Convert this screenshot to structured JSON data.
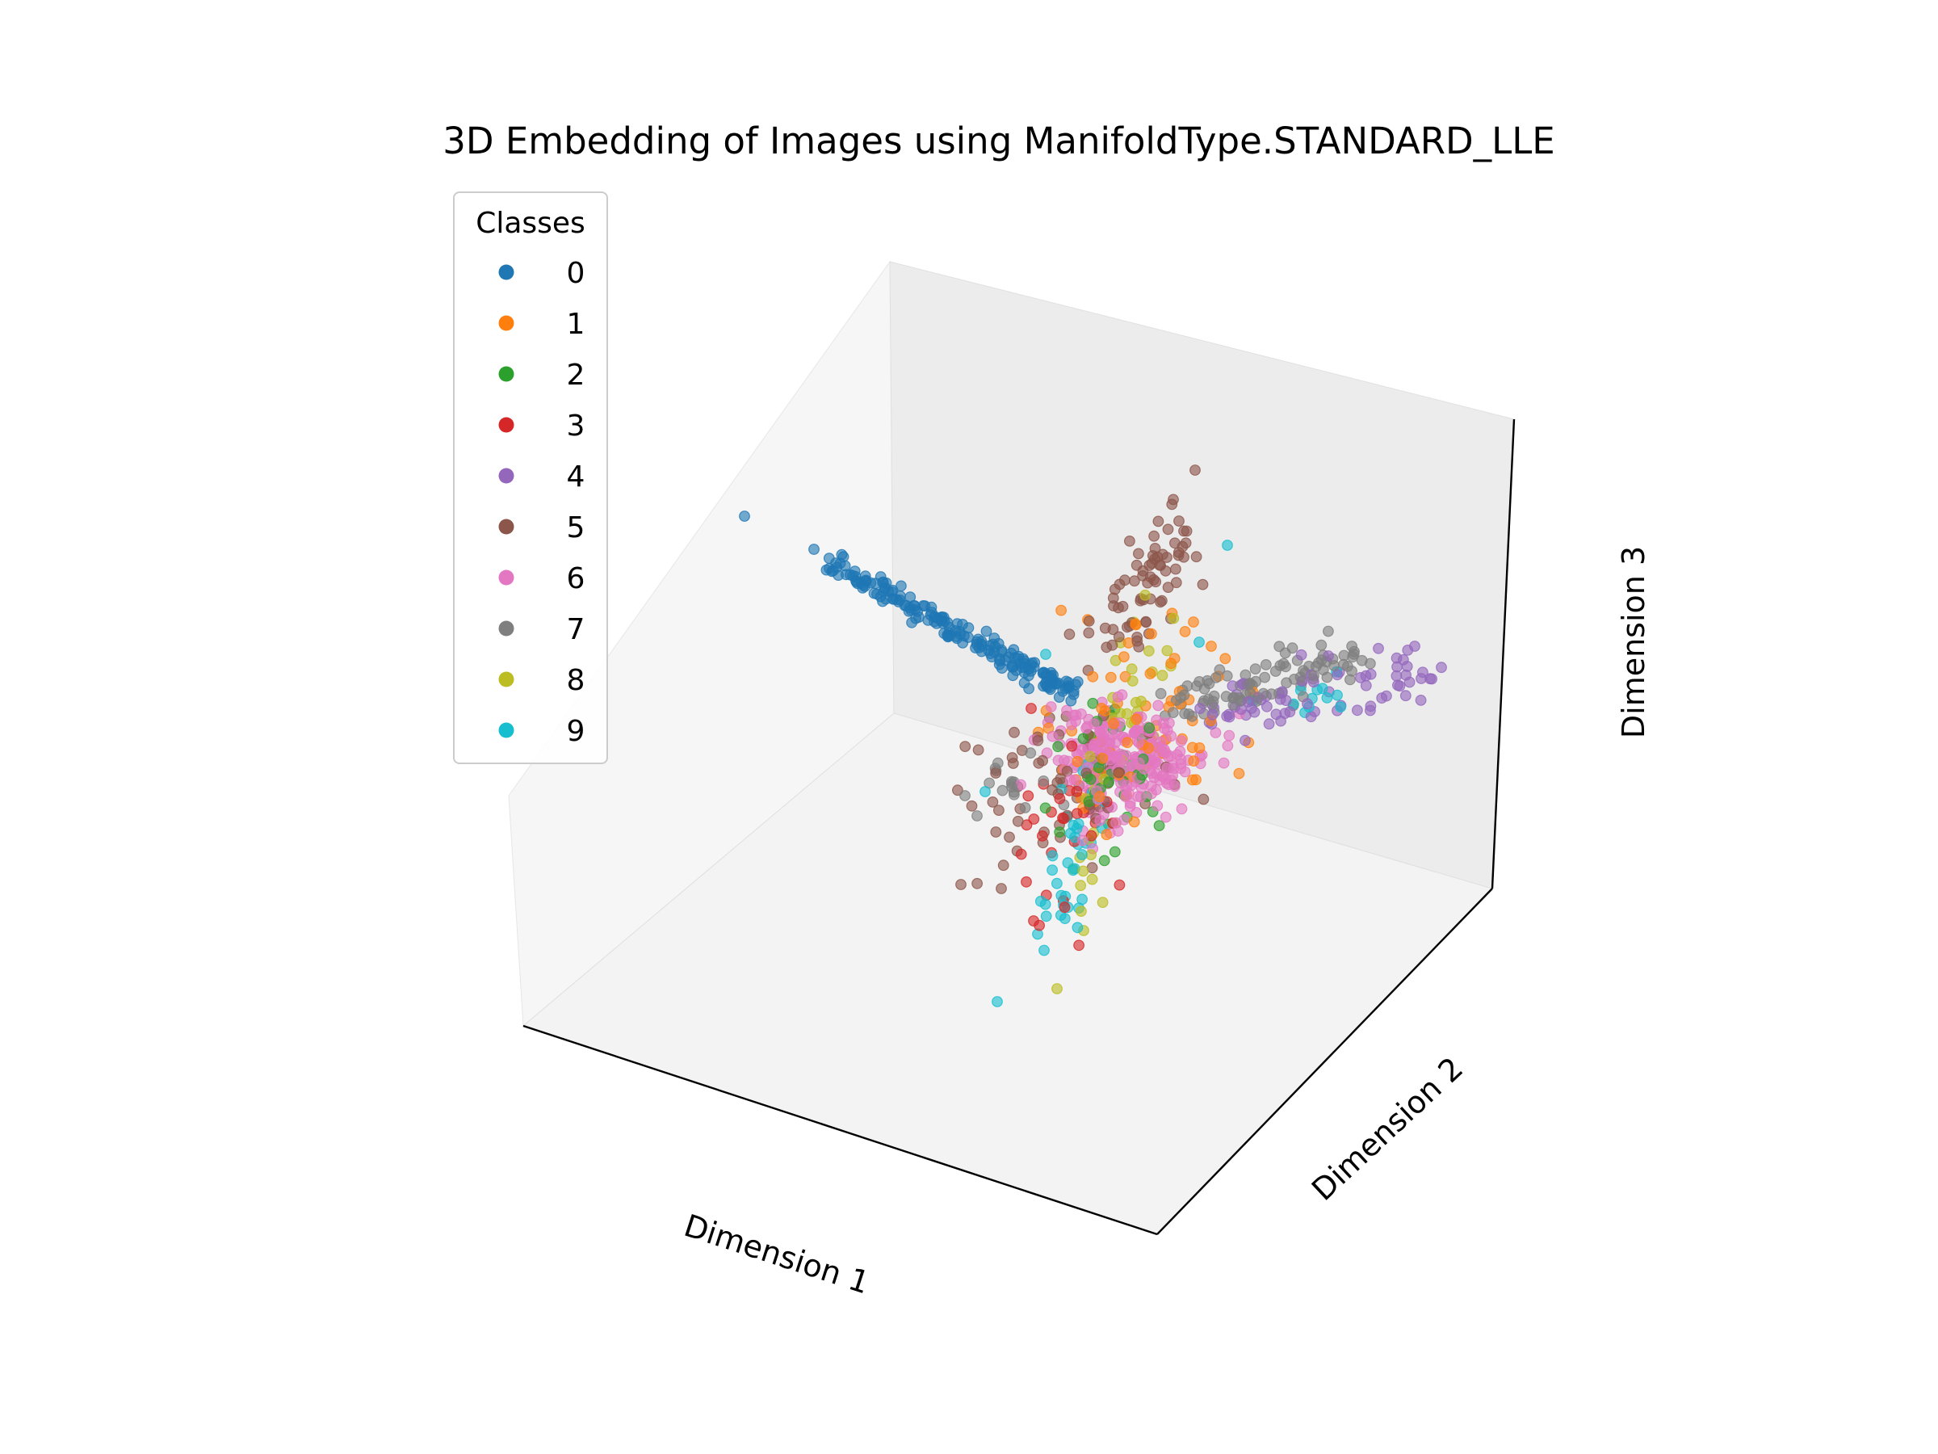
{
  "chart_data": {
    "type": "scatter",
    "projection": "3d",
    "title": "3D Embedding of Images using ManifoldType.STANDARD_LLE",
    "xlabel": "Dimension 1",
    "ylabel": "Dimension 2",
    "zlabel": "Dimension 3",
    "grid": false,
    "tick_labels": false,
    "legend": {
      "title": "Classes",
      "placement": "upper-left"
    },
    "series": [
      {
        "name": "0",
        "color": "#1f77b4"
      },
      {
        "name": "1",
        "color": "#ff7f0e"
      },
      {
        "name": "2",
        "color": "#2ca02c"
      },
      {
        "name": "3",
        "color": "#d62728"
      },
      {
        "name": "4",
        "color": "#9467bd"
      },
      {
        "name": "5",
        "color": "#8c564b"
      },
      {
        "name": "6",
        "color": "#e377c2"
      },
      {
        "name": "7",
        "color": "#7f7f7f"
      },
      {
        "name": "8",
        "color": "#bcbd22"
      },
      {
        "name": "9",
        "color": "#17becf"
      }
    ]
  }
}
